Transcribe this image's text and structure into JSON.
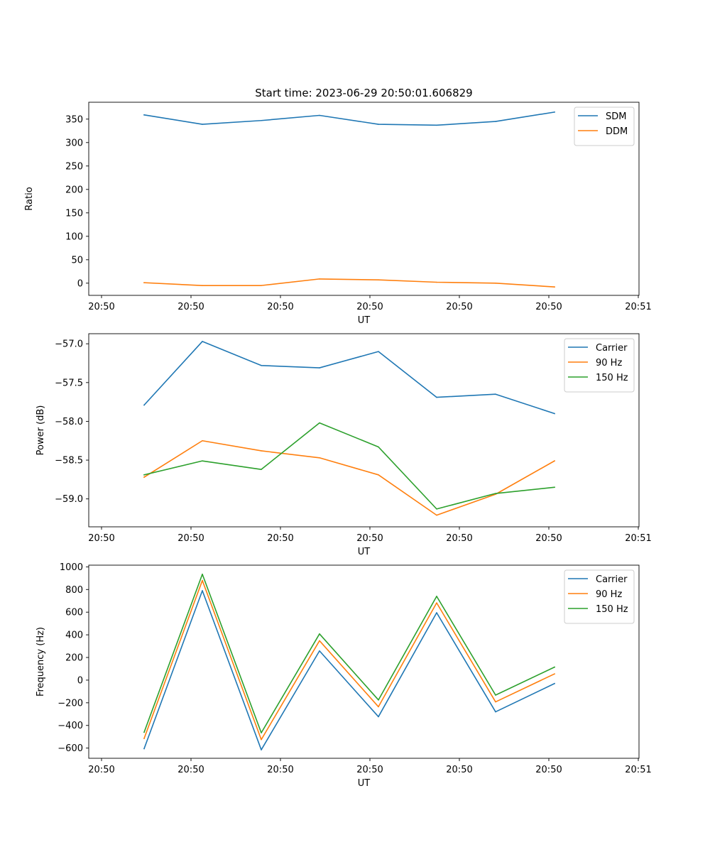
{
  "figure": {
    "title": "Start time: 2023-06-29 20:50:01.606829"
  },
  "colors": {
    "blue": "#1f77b4",
    "orange": "#ff7f0e",
    "green": "#2ca02c"
  },
  "chart_data": [
    {
      "type": "line",
      "title": "Start time: 2023-06-29 20:50:01.606829",
      "xlabel": "UT",
      "ylabel": "Ratio",
      "x_tick_labels": [
        "20:50",
        "20:50",
        "20:50",
        "20:50",
        "20:50",
        "20:50",
        "20:51"
      ],
      "ylim": [
        -26,
        386
      ],
      "y_ticks": [
        0,
        50,
        100,
        150,
        200,
        250,
        300,
        350
      ],
      "legend": "top-right",
      "series": [
        {
          "name": "SDM",
          "color": "#1f77b4",
          "values": [
            359,
            339,
            347,
            358,
            339,
            337,
            345,
            365
          ]
        },
        {
          "name": "DDM",
          "color": "#ff7f0e",
          "values": [
            1,
            -5,
            -5,
            9,
            7,
            2,
            0,
            -8
          ]
        }
      ]
    },
    {
      "type": "line",
      "title": "",
      "xlabel": "UT",
      "ylabel": "Power (dB)",
      "x_tick_labels": [
        "20:50",
        "20:50",
        "20:50",
        "20:50",
        "20:50",
        "20:50",
        "20:51"
      ],
      "ylim": [
        -59.36,
        -56.87
      ],
      "y_ticks": [
        -59.0,
        -58.5,
        -58.0,
        -57.5,
        -57.0
      ],
      "y_tick_format": "fixed1",
      "legend": "top-right",
      "series": [
        {
          "name": "Carrier",
          "color": "#1f77b4",
          "values": [
            -57.79,
            -56.97,
            -57.28,
            -57.31,
            -57.1,
            -57.69,
            -57.65,
            -57.9
          ]
        },
        {
          "name": "90 Hz",
          "color": "#ff7f0e",
          "values": [
            -58.72,
            -58.25,
            -58.38,
            -58.47,
            -58.69,
            -59.21,
            -58.94,
            -58.51
          ]
        },
        {
          "name": "150 Hz",
          "color": "#2ca02c",
          "values": [
            -58.69,
            -58.51,
            -58.62,
            -58.02,
            -58.33,
            -59.13,
            -58.93,
            -58.85
          ]
        }
      ]
    },
    {
      "type": "line",
      "title": "",
      "xlabel": "UT",
      "ylabel": "Frequency (Hz)",
      "x_tick_labels": [
        "20:50",
        "20:50",
        "20:50",
        "20:50",
        "20:50",
        "20:50",
        "20:51"
      ],
      "ylim": [
        -690,
        1015
      ],
      "y_ticks": [
        -600,
        -400,
        -200,
        0,
        200,
        400,
        600,
        800,
        1000
      ],
      "legend": "top-right",
      "series": [
        {
          "name": "Carrier",
          "color": "#1f77b4",
          "values": [
            -605,
            790,
            -615,
            258,
            -323,
            595,
            -280,
            -30
          ]
        },
        {
          "name": "90 Hz",
          "color": "#ff7f0e",
          "values": [
            -515,
            880,
            -525,
            348,
            -235,
            682,
            -192,
            55
          ]
        },
        {
          "name": "150 Hz",
          "color": "#2ca02c",
          "values": [
            -460,
            935,
            -465,
            408,
            -175,
            740,
            -132,
            115
          ]
        }
      ]
    }
  ]
}
